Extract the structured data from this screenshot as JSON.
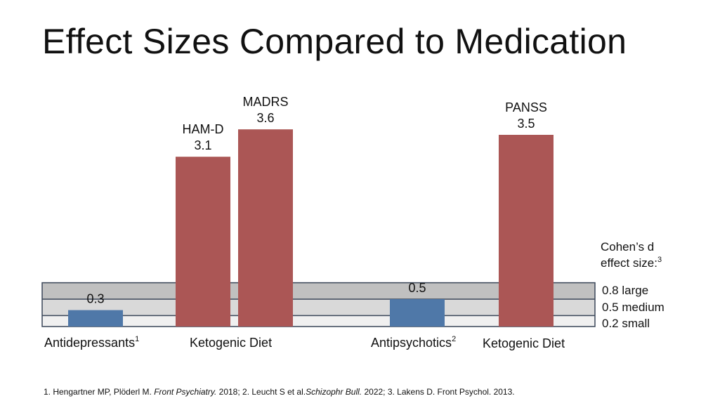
{
  "title": "Effect Sizes Compared to Medication",
  "chart_data": {
    "type": "bar",
    "title": "Effect Sizes Compared to Medication",
    "xlabel": "",
    "ylabel": "Cohen's d",
    "ylim": [
      0,
      4
    ],
    "grid": false,
    "bars": [
      {
        "group": "Antidepressants",
        "group_sup": "1",
        "label": "",
        "value": 0.3,
        "value_label": "0.3",
        "kind": "medication"
      },
      {
        "group": "Ketogenic Diet",
        "group_sup": "",
        "label": "HAM-D",
        "value": 3.1,
        "value_label": "3.1",
        "kind": "diet"
      },
      {
        "group": "Ketogenic Diet",
        "group_sup": "",
        "label": "MADRS",
        "value": 3.6,
        "value_label": "3.6",
        "kind": "diet"
      },
      {
        "group": "Antipsychotics",
        "group_sup": "2",
        "label": "",
        "value": 0.5,
        "value_label": "0.5",
        "kind": "medication"
      },
      {
        "group": "Ketogenic Diet",
        "group_sup": "",
        "label": "PANSS",
        "value": 3.5,
        "value_label": "3.5",
        "kind": "diet"
      }
    ],
    "category_labels": [
      {
        "text": "Antidepressants",
        "sup": "1"
      },
      {
        "text": "Ketogenic Diet",
        "sup": ""
      },
      {
        "text": "Antipsychotics",
        "sup": "2"
      },
      {
        "text": "Ketogenic Diet",
        "sup": ""
      }
    ],
    "reference_bands": {
      "heading_line1": "Cohen’s d",
      "heading_line2": "effect size:",
      "heading_sup": "3",
      "bands": [
        {
          "value": 0.8,
          "label": "0.8 large",
          "color": "#c0c0c0"
        },
        {
          "value": 0.5,
          "label": "0.5 medium",
          "color": "#d9d9d9"
        },
        {
          "value": 0.2,
          "label": "0.2 small",
          "color": "#f0f0f0"
        }
      ]
    },
    "colors": {
      "medication": "#4f78a8",
      "diet": "#ab5655",
      "band_border": "#3a4658"
    }
  },
  "footnote": {
    "parts": [
      {
        "text": "1. Hengartner MP, Plöderl M. ",
        "italic": false
      },
      {
        "text": "Front Psychiatry.",
        "italic": true
      },
      {
        "text": " 2018; 2. Leucht S et al.",
        "italic": false
      },
      {
        "text": "Schizophr Bull.",
        "italic": true
      },
      {
        "text": " 2022; 3. Lakens D. Front Psychol. 2013.",
        "italic": false
      }
    ]
  }
}
